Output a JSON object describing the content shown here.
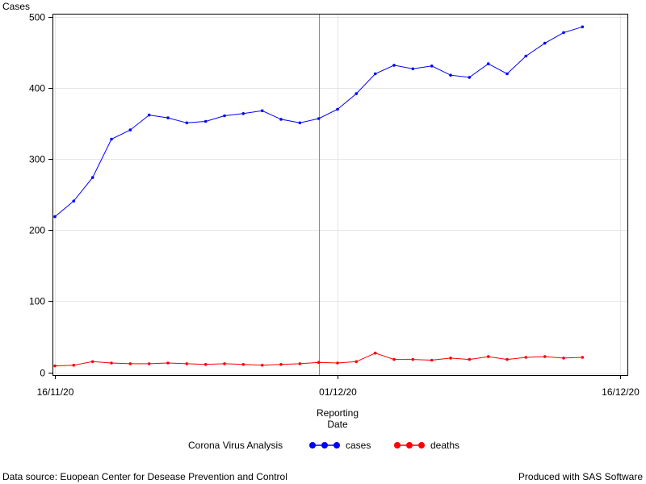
{
  "chart_data": {
    "type": "line",
    "ylabel": "Cases",
    "xlabel_lines": [
      "Reporting",
      "Date"
    ],
    "ylim": [
      0,
      500
    ],
    "y_ticks": [
      0,
      100,
      200,
      300,
      400,
      500
    ],
    "x_ticks": [
      "16/11/20",
      "01/12/20",
      "16/12/20"
    ],
    "x_start_label": "16/11/20",
    "reference_line_date": "30/11/20",
    "grid": true,
    "legend_position": "bottom",
    "legend_title": "Corona Virus Analysis",
    "x": [
      "16/11/20",
      "17/11/20",
      "18/11/20",
      "19/11/20",
      "20/11/20",
      "21/11/20",
      "22/11/20",
      "23/11/20",
      "24/11/20",
      "25/11/20",
      "26/11/20",
      "27/11/20",
      "28/11/20",
      "29/11/20",
      "30/11/20",
      "01/12/20",
      "02/12/20",
      "03/12/20",
      "04/12/20",
      "05/12/20",
      "06/12/20",
      "07/12/20",
      "08/12/20",
      "09/12/20",
      "10/12/20",
      "11/12/20",
      "12/12/20",
      "13/12/20",
      "14/12/20"
    ],
    "series": [
      {
        "name": "cases",
        "color": "#0000ff",
        "values": [
          219,
          241,
          274,
          328,
          341,
          362,
          358,
          351,
          353,
          361,
          364,
          368,
          356,
          351,
          357,
          370,
          392,
          420,
          432,
          427,
          431,
          418,
          415,
          434,
          420,
          445,
          463,
          478,
          486
        ]
      },
      {
        "name": "deaths",
        "color": "#ff0000",
        "values": [
          9,
          10,
          15,
          13,
          12,
          12,
          13,
          12,
          11,
          12,
          11,
          10,
          11,
          12,
          14,
          13,
          15,
          27,
          18,
          18,
          17,
          20,
          18,
          22,
          18,
          21,
          22,
          20,
          21
        ]
      }
    ]
  },
  "footer": {
    "source": "Data source: Euopean Center for Desease Prevention and Control",
    "produced": "Produced with SAS Software"
  }
}
